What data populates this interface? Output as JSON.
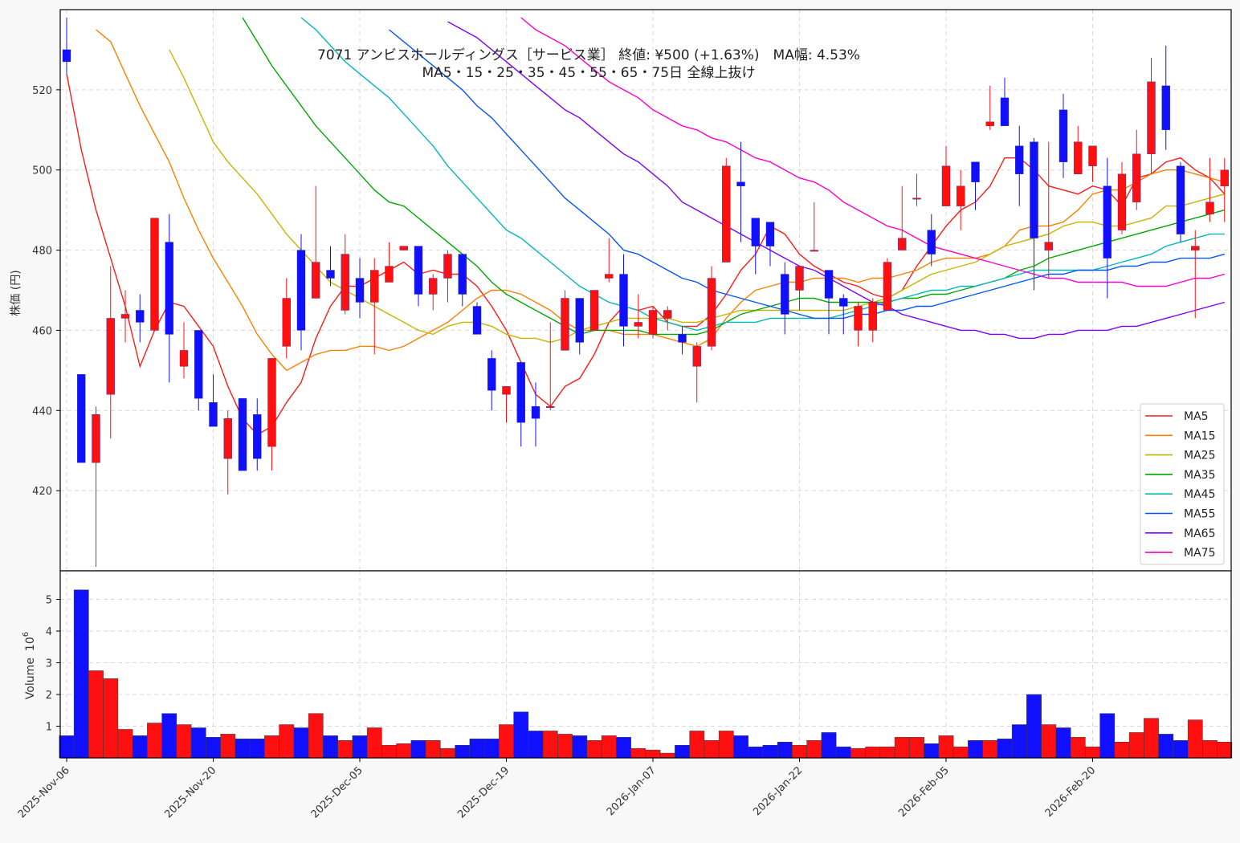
{
  "chart_data": {
    "type": "candlestick",
    "title": "7071 アンビスホールディングス［サービス業］ 終値: ¥500 (+1.63%)　MA幅: 4.53%",
    "subtitle": "MA5・15・25・35・45・55・65・75日 全線上抜け",
    "price_ylabel": "株価 (円)",
    "volume_ylabel": "Volume",
    "volume_unit": "10^6",
    "volume_unit_base": "10",
    "volume_unit_exp": "6",
    "price_ylim": [
      400,
      540
    ],
    "price_yticks": [
      420,
      440,
      460,
      480,
      500,
      520
    ],
    "volume_ylim": [
      0,
      5.9
    ],
    "volume_yticks": [
      1,
      2,
      3,
      4,
      5
    ],
    "grid": true,
    "legend_position": "bottom-right",
    "up_color": "#ff1010",
    "down_color": "#1010ff",
    "xtick_labels": [
      {
        "index": 0,
        "label": "2025-Nov-06"
      },
      {
        "index": 10,
        "label": "2025-Nov-20"
      },
      {
        "index": 20,
        "label": "2025-Dec-05"
      },
      {
        "index": 30,
        "label": "2025-Dec-19"
      },
      {
        "index": 40,
        "label": "2026-Jan-07"
      },
      {
        "index": 50,
        "label": "2026-Jan-22"
      },
      {
        "index": 60,
        "label": "2026-Feb-05"
      },
      {
        "index": 70,
        "label": "2026-Feb-20"
      }
    ],
    "candles": [
      [
        530,
        538,
        524,
        527
      ],
      [
        449,
        449,
        427,
        427
      ],
      [
        427,
        441,
        401,
        439
      ],
      [
        444,
        476,
        433,
        463
      ],
      [
        463,
        470,
        457,
        464
      ],
      [
        465,
        469,
        457,
        462
      ],
      [
        460,
        488,
        460,
        488
      ],
      [
        482,
        489,
        447,
        459
      ],
      [
        451,
        462,
        448,
        455
      ],
      [
        460,
        460,
        440,
        443
      ],
      [
        442,
        449,
        436,
        436
      ],
      [
        428,
        440,
        419,
        438
      ],
      [
        443,
        443,
        425,
        425
      ],
      [
        439,
        443,
        425,
        428
      ],
      [
        431,
        453,
        425,
        453
      ],
      [
        456,
        473,
        453,
        468
      ],
      [
        480,
        484,
        455,
        460
      ],
      [
        468,
        496,
        468,
        477
      ],
      [
        475,
        481,
        471,
        473
      ],
      [
        465,
        484,
        464,
        479
      ],
      [
        473,
        478,
        463,
        467
      ],
      [
        467,
        478,
        454,
        475
      ],
      [
        472,
        482,
        472,
        476
      ],
      [
        480,
        481,
        480,
        481
      ],
      [
        481,
        481,
        466,
        469
      ],
      [
        469,
        474,
        465,
        473
      ],
      [
        473,
        480,
        467,
        479
      ],
      [
        479,
        479,
        466,
        469
      ],
      [
        466,
        467,
        459,
        459
      ],
      [
        453,
        455,
        440,
        445
      ],
      [
        444,
        446,
        437,
        446
      ],
      [
        452,
        452,
        431,
        437
      ],
      [
        441,
        447,
        431,
        438
      ],
      [
        441,
        462,
        440,
        441
      ],
      [
        455,
        470,
        455,
        468
      ],
      [
        468,
        468,
        454,
        457
      ],
      [
        460,
        470,
        460,
        470
      ],
      [
        473,
        483,
        472,
        474
      ],
      [
        474,
        479,
        456,
        461
      ],
      [
        461,
        469,
        458,
        462
      ],
      [
        459,
        466,
        458,
        465
      ],
      [
        463,
        466,
        460,
        465
      ],
      [
        459,
        461,
        454,
        457
      ],
      [
        451,
        457,
        442,
        456
      ],
      [
        456,
        476,
        455,
        473
      ],
      [
        477,
        503,
        477,
        501
      ],
      [
        497,
        507,
        482,
        496
      ],
      [
        488,
        488,
        474,
        481
      ],
      [
        487,
        487,
        476,
        481
      ],
      [
        474,
        477,
        459,
        464
      ],
      [
        470,
        476,
        465,
        476
      ],
      [
        480,
        492,
        480,
        480
      ],
      [
        475,
        475,
        459,
        468
      ],
      [
        468,
        469,
        459,
        466
      ],
      [
        460,
        467,
        456,
        466
      ],
      [
        460,
        468,
        457,
        467
      ],
      [
        465,
        478,
        465,
        477
      ],
      [
        480,
        496,
        480,
        483
      ],
      [
        493,
        499,
        491,
        493
      ],
      [
        485,
        489,
        476,
        479
      ],
      [
        491,
        506,
        491,
        501
      ],
      [
        491,
        500,
        485,
        496
      ],
      [
        502,
        502,
        490,
        497
      ],
      [
        511,
        521,
        510,
        512
      ],
      [
        518,
        523,
        511,
        511
      ],
      [
        506,
        511,
        491,
        499
      ],
      [
        507,
        508,
        470,
        483
      ],
      [
        480,
        507,
        473,
        482
      ],
      [
        515,
        519,
        498,
        502
      ],
      [
        499,
        511,
        499,
        507
      ],
      [
        501,
        506,
        497,
        506
      ],
      [
        496,
        503,
        468,
        478
      ],
      [
        485,
        502,
        484,
        499
      ],
      [
        492,
        510,
        490,
        504
      ],
      [
        504,
        528,
        499,
        522
      ],
      [
        521,
        531,
        505,
        510
      ],
      [
        501,
        502,
        482,
        484
      ],
      [
        480,
        485,
        463,
        481
      ],
      [
        489,
        503,
        487,
        492
      ],
      [
        496,
        503,
        487,
        500
      ]
    ],
    "volumes": [
      0.7,
      5.3,
      2.75,
      2.5,
      0.9,
      0.7,
      1.1,
      1.4,
      1.05,
      0.95,
      0.65,
      0.75,
      0.6,
      0.6,
      0.7,
      1.05,
      0.95,
      1.4,
      0.7,
      0.55,
      0.7,
      0.95,
      0.4,
      0.45,
      0.55,
      0.55,
      0.3,
      0.4,
      0.6,
      0.6,
      1.05,
      1.45,
      0.85,
      0.85,
      0.75,
      0.7,
      0.55,
      0.7,
      0.65,
      0.3,
      0.25,
      0.15,
      0.4,
      0.85,
      0.55,
      0.85,
      0.7,
      0.35,
      0.4,
      0.5,
      0.4,
      0.55,
      0.8,
      0.35,
      0.3,
      0.35,
      0.35,
      0.65,
      0.65,
      0.45,
      0.7,
      0.35,
      0.55,
      0.55,
      0.6,
      1.05,
      2.0,
      1.05,
      0.95,
      0.65,
      0.35,
      1.4,
      0.5,
      0.8,
      1.25,
      0.75,
      0.55,
      1.2,
      0.55,
      0.5
    ],
    "series": [
      {
        "name": "MA5",
        "color": "#ff1a1a",
        "values": [
          524,
          505,
          490,
          478,
          466,
          451,
          460,
          467,
          466,
          461,
          456,
          446,
          438,
          434,
          436,
          442,
          447,
          458,
          466,
          471,
          471,
          473,
          475,
          477,
          474,
          475,
          474,
          474,
          471,
          466,
          460,
          452,
          444,
          441,
          446,
          448,
          454,
          462,
          466,
          465,
          466,
          462,
          461,
          461,
          464,
          469,
          475,
          479,
          486,
          484,
          479,
          476,
          474,
          472,
          471,
          469,
          468,
          470,
          476,
          481,
          486,
          490,
          492,
          496,
          503,
          503,
          500,
          496,
          495,
          494,
          496,
          495,
          491,
          498,
          499,
          502,
          503,
          500,
          498,
          494
        ]
      },
      {
        "name": "MA15",
        "color": "#ff8000",
        "values": [
          null,
          null,
          535,
          532,
          524,
          516,
          509,
          502,
          493,
          485,
          478,
          472,
          466,
          459,
          454,
          450,
          452,
          454,
          455,
          455,
          456,
          456,
          455,
          456,
          458,
          460,
          462,
          465,
          468,
          470,
          470,
          469,
          467,
          465,
          462,
          460,
          460,
          460,
          459,
          459,
          459,
          458,
          457,
          456,
          458,
          463,
          467,
          470,
          471,
          472,
          472,
          473,
          473,
          473,
          472,
          473,
          473,
          474,
          475,
          477,
          478,
          478,
          478,
          479,
          481,
          485,
          486,
          486,
          487,
          490,
          494,
          495,
          495,
          497,
          499,
          500,
          500,
          499,
          498,
          497
        ]
      },
      {
        "name": "MA25",
        "color": "#c8b400",
        "values": [
          null,
          null,
          null,
          null,
          null,
          null,
          null,
          530,
          523,
          515,
          507,
          502,
          498,
          494,
          489,
          484,
          480,
          476,
          472,
          470,
          468,
          466,
          464,
          462,
          460,
          459,
          461,
          462,
          462,
          461,
          459,
          458,
          458,
          457,
          458,
          460,
          461,
          462,
          463,
          463,
          463,
          463,
          462,
          462,
          463,
          464,
          465,
          465,
          465,
          465,
          465,
          465,
          465,
          465,
          466,
          467,
          468,
          470,
          472,
          474,
          475,
          476,
          477,
          479,
          481,
          482,
          483,
          484,
          486,
          487,
          487,
          486,
          486,
          487,
          488,
          491,
          491,
          492,
          493,
          494
        ]
      },
      {
        "name": "MA35",
        "color": "#00a800",
        "values": [
          null,
          null,
          null,
          null,
          null,
          null,
          null,
          null,
          null,
          null,
          null,
          null,
          538,
          532,
          526,
          521,
          516,
          511,
          507,
          503,
          499,
          495,
          492,
          491,
          488,
          485,
          482,
          479,
          476,
          472,
          469,
          467,
          465,
          463,
          461,
          459,
          460,
          460,
          460,
          460,
          459,
          459,
          459,
          459,
          460,
          462,
          464,
          465,
          466,
          467,
          468,
          468,
          467,
          467,
          467,
          467,
          467,
          468,
          468,
          469,
          469,
          470,
          471,
          472,
          473,
          475,
          476,
          478,
          479,
          480,
          481,
          482,
          483,
          484,
          485,
          486,
          487,
          488,
          489,
          490
        ]
      },
      {
        "name": "MA45",
        "color": "#00b8b8",
        "values": [
          null,
          null,
          null,
          null,
          null,
          null,
          null,
          null,
          null,
          null,
          null,
          null,
          null,
          null,
          null,
          null,
          538,
          535,
          531,
          527,
          524,
          521,
          518,
          514,
          510,
          506,
          501,
          497,
          493,
          489,
          485,
          483,
          480,
          477,
          474,
          471,
          469,
          467,
          466,
          465,
          463,
          462,
          461,
          460,
          461,
          462,
          462,
          462,
          463,
          463,
          463,
          463,
          463,
          464,
          465,
          466,
          467,
          468,
          469,
          470,
          470,
          471,
          471,
          472,
          473,
          474,
          475,
          475,
          475,
          475,
          475,
          476,
          477,
          478,
          479,
          481,
          482,
          483,
          484,
          484
        ]
      },
      {
        "name": "MA55",
        "color": "#0055ff",
        "values": [
          null,
          null,
          null,
          null,
          null,
          null,
          null,
          null,
          null,
          null,
          null,
          null,
          null,
          null,
          null,
          null,
          null,
          null,
          null,
          null,
          null,
          null,
          535,
          532,
          529,
          526,
          523,
          520,
          516,
          513,
          509,
          505,
          501,
          497,
          493,
          490,
          487,
          484,
          480,
          479,
          477,
          475,
          473,
          472,
          470,
          469,
          468,
          467,
          466,
          465,
          464,
          463,
          463,
          463,
          464,
          464,
          465,
          465,
          466,
          466,
          467,
          468,
          469,
          470,
          471,
          472,
          473,
          474,
          474,
          475,
          475,
          475,
          476,
          476,
          477,
          477,
          478,
          478,
          478,
          479
        ]
      },
      {
        "name": "MA65",
        "color": "#8000ff",
        "values": [
          null,
          null,
          null,
          null,
          null,
          null,
          null,
          null,
          null,
          null,
          null,
          null,
          null,
          null,
          null,
          null,
          null,
          null,
          null,
          null,
          null,
          null,
          null,
          null,
          null,
          null,
          537,
          535,
          533,
          530,
          527,
          524,
          521,
          518,
          515,
          513,
          510,
          507,
          504,
          502,
          499,
          496,
          492,
          490,
          488,
          486,
          484,
          482,
          480,
          478,
          476,
          475,
          473,
          471,
          469,
          467,
          466,
          464,
          463,
          462,
          461,
          460,
          460,
          459,
          459,
          458,
          458,
          459,
          459,
          460,
          460,
          460,
          461,
          461,
          462,
          463,
          464,
          465,
          466,
          467
        ]
      },
      {
        "name": "MA75",
        "color": "#ff00cc",
        "values": [
          null,
          null,
          null,
          null,
          null,
          null,
          null,
          null,
          null,
          null,
          null,
          null,
          null,
          null,
          null,
          null,
          null,
          null,
          null,
          null,
          null,
          null,
          null,
          null,
          null,
          null,
          null,
          null,
          null,
          null,
          null,
          538,
          535,
          533,
          531,
          528,
          525,
          522,
          520,
          518,
          515,
          513,
          511,
          510,
          508,
          507,
          505,
          503,
          502,
          500,
          498,
          497,
          495,
          492,
          490,
          488,
          486,
          485,
          483,
          481,
          480,
          479,
          478,
          477,
          476,
          475,
          474,
          473,
          473,
          472,
          472,
          472,
          472,
          471,
          471,
          471,
          472,
          473,
          473,
          474
        ]
      }
    ]
  }
}
